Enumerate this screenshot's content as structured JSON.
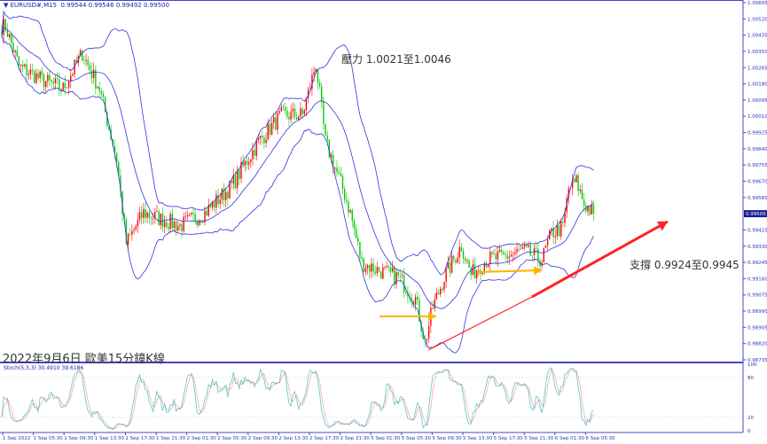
{
  "header": {
    "symbol": "EURUSD#,M15",
    "values": "0.99544 0.99546 0.99492 0.99500"
  },
  "annotations": {
    "resistance": "壓力 1.0021至1.0046",
    "support": "支撐 0.9924至0.9945",
    "caption": "2022年9月6日 歐美15分鐘K線"
  },
  "stoch": {
    "label": "Stoch(5,3,3) 30.4910 39.6186",
    "levels": [
      "100",
      "80",
      "20",
      "0"
    ]
  },
  "colors": {
    "bull": "#ff0000",
    "bear": "#00cc00",
    "bands": "#3333dd",
    "stoch_main": "#66cccc",
    "stoch_signal": "#ff4444",
    "trendline": "#ff2222",
    "arrows": "#ffb300",
    "axis": "#4444cc",
    "price_tag_bg": "#1a1a99"
  },
  "chart_data": {
    "type": "candlestick",
    "timeframe": "M15",
    "indicators": [
      "Bollinger Bands",
      "Stochastic(5,3,3)"
    ],
    "y_ticks": [
      "1.00605",
      "1.00520",
      "1.00435",
      "1.00350",
      "1.00265",
      "1.00180",
      "1.00095",
      "1.00010",
      "0.99925",
      "0.99840",
      "0.99755",
      "0.99670",
      "0.99585",
      "0.99415",
      "0.99330",
      "0.99245",
      "0.99160",
      "0.99075",
      "0.98990",
      "0.98905",
      "0.98820",
      "0.98735"
    ],
    "ylim": [
      0.98735,
      1.00605
    ],
    "current_price": "0.99500",
    "x_ticks": [
      "1 Sep 2022",
      "1 Sep 05:30",
      "1 Sep 09:30",
      "1 Sep 13:30",
      "1 Sep 17:30",
      "1 Sep 21:30",
      "2 Sep 01:30",
      "2 Sep 05:30",
      "2 Sep 09:30",
      "2 Sep 13:30",
      "2 Sep 17:30",
      "2 Sep 21:30",
      "5 Sep 01:30",
      "5 Sep 05:30",
      "5 Sep 09:30",
      "5 Sep 13:30",
      "5 Sep 17:30",
      "5 Sep 21:30",
      "6 Sep 01:30",
      "6 Sep 05:30"
    ],
    "close_path": [
      [
        2,
        1.0048
      ],
      [
        9,
        1.00271
      ],
      [
        21,
        1.00201
      ],
      [
        32,
        1.00155
      ],
      [
        42,
        1.00341
      ],
      [
        51,
        1.00155
      ],
      [
        60,
        0.99784
      ],
      [
        65,
        0.99343
      ],
      [
        74,
        0.99505
      ],
      [
        93,
        0.99436
      ],
      [
        106,
        0.99505
      ],
      [
        120,
        0.99645
      ],
      [
        134,
        0.99877
      ],
      [
        146,
        1.00016
      ],
      [
        157,
        1.00016
      ],
      [
        164,
        1.00285
      ],
      [
        169,
        0.99877
      ],
      [
        178,
        0.99631
      ],
      [
        182,
        0.99505
      ],
      [
        188,
        0.99241
      ],
      [
        199,
        0.99194
      ],
      [
        207,
        0.99167
      ],
      [
        216,
        0.99055
      ],
      [
        221,
        0.98823
      ],
      [
        225,
        0.99009
      ],
      [
        231,
        0.99167
      ],
      [
        240,
        0.99334
      ],
      [
        245,
        0.99181
      ],
      [
        253,
        0.99259
      ],
      [
        262,
        0.99273
      ],
      [
        272,
        0.99306
      ],
      [
        282,
        0.99259
      ],
      [
        287,
        0.99399
      ],
      [
        293,
        0.99426
      ],
      [
        296,
        0.99631
      ],
      [
        300,
        0.99668
      ],
      [
        304,
        0.99552
      ],
      [
        309,
        0.995
      ]
    ]
  }
}
